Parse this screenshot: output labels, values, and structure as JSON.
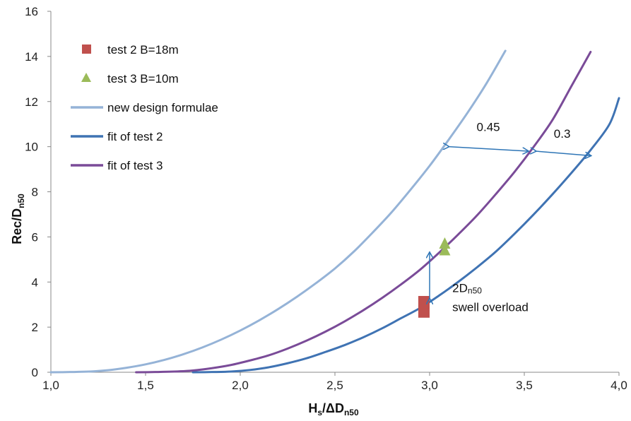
{
  "chart_data": {
    "type": "line",
    "xlabel": {
      "main": "H",
      "sub1": "s",
      "mid": "/ΔD",
      "sub2": "n50"
    },
    "ylabel": {
      "main": "Rec/D",
      "sub": "n50"
    },
    "xlim": [
      1.0,
      4.0
    ],
    "ylim": [
      0,
      16
    ],
    "xticks": [
      "1,0",
      "1,5",
      "2,0",
      "2,5",
      "3,0",
      "3,5",
      "4,0"
    ],
    "yticks": [
      "0",
      "2",
      "4",
      "6",
      "8",
      "10",
      "12",
      "14",
      "16"
    ],
    "grid": false,
    "legend_position": "top-left",
    "series": [
      {
        "name": "test 2 B=18m",
        "kind": "scatter",
        "marker": "square",
        "color": "#c0504d",
        "points": [
          [
            2.97,
            2.7
          ],
          [
            2.97,
            3.1
          ]
        ]
      },
      {
        "name": "test 3 B=10m",
        "kind": "scatter",
        "marker": "triangle",
        "color": "#9bbb59",
        "points": [
          [
            3.08,
            5.4
          ],
          [
            3.08,
            5.7
          ]
        ]
      },
      {
        "name": "new design formulae",
        "kind": "line",
        "color": "#95b3d7",
        "x": [
          1.0,
          1.1,
          1.2,
          1.3,
          1.4,
          1.5,
          1.6,
          1.7,
          1.8,
          1.9,
          2.0,
          2.1,
          2.2,
          2.3,
          2.4,
          2.5,
          2.6,
          2.7,
          2.8,
          2.9,
          3.0,
          3.1,
          3.2,
          3.3,
          3.4
        ],
        "y": [
          0.0,
          0.01,
          0.03,
          0.09,
          0.2,
          0.35,
          0.55,
          0.8,
          1.1,
          1.45,
          1.85,
          2.3,
          2.8,
          3.35,
          3.95,
          4.6,
          5.35,
          6.2,
          7.1,
          8.1,
          9.15,
          10.3,
          11.5,
          12.8,
          14.25
        ]
      },
      {
        "name": "fit of test 2",
        "kind": "line",
        "color": "#3f73b3",
        "x": [
          1.75,
          1.85,
          1.95,
          2.05,
          2.15,
          2.25,
          2.35,
          2.45,
          2.55,
          2.65,
          2.75,
          2.85,
          2.95,
          3.05,
          3.15,
          3.25,
          3.35,
          3.45,
          3.55,
          3.65,
          3.75,
          3.85,
          3.95,
          4.0
        ],
        "y": [
          0.0,
          0.01,
          0.03,
          0.1,
          0.22,
          0.4,
          0.62,
          0.9,
          1.2,
          1.55,
          1.95,
          2.4,
          2.85,
          3.4,
          4.0,
          4.65,
          5.35,
          6.15,
          7.0,
          7.9,
          8.85,
          9.85,
          11.0,
          12.15
        ]
      },
      {
        "name": "fit of test 3",
        "kind": "line",
        "color": "#7a4b98",
        "x": [
          1.45,
          1.55,
          1.65,
          1.75,
          1.85,
          1.95,
          2.05,
          2.15,
          2.25,
          2.35,
          2.45,
          2.55,
          2.65,
          2.75,
          2.85,
          2.95,
          3.05,
          3.15,
          3.25,
          3.35,
          3.45,
          3.55,
          3.65,
          3.75,
          3.85
        ],
        "y": [
          0.0,
          0.01,
          0.03,
          0.08,
          0.18,
          0.32,
          0.52,
          0.75,
          1.05,
          1.4,
          1.8,
          2.25,
          2.75,
          3.3,
          3.9,
          4.55,
          5.3,
          6.1,
          6.95,
          7.9,
          8.9,
          10.0,
          11.2,
          12.7,
          14.2
        ]
      }
    ],
    "annotations": [
      {
        "text": "0.45",
        "from": [
          3.1,
          10.0
        ],
        "to": [
          3.52,
          9.8
        ],
        "label_at": [
          3.31,
          10.7
        ]
      },
      {
        "text": "0.3",
        "from": [
          3.56,
          9.8
        ],
        "to": [
          3.85,
          9.6
        ],
        "label_at": [
          3.7,
          10.4
        ]
      },
      {
        "text_main": "2D",
        "text_sub": "n50",
        "text_line2": "swell overload",
        "from": [
          3.0,
          3.25
        ],
        "to": [
          3.0,
          5.3
        ],
        "label_at": [
          3.12,
          3.55
        ]
      }
    ]
  }
}
